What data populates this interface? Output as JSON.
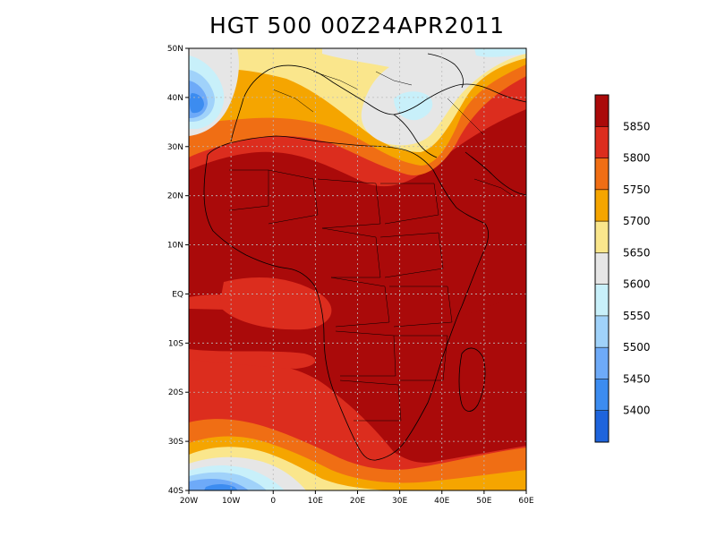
{
  "title": "HGT 500 00Z24APR2011",
  "map": {
    "lon_range": [
      -20,
      60
    ],
    "lat_range": [
      -40,
      50
    ],
    "lon_ticks": [
      "20W",
      "10W",
      "0",
      "10E",
      "20E",
      "30E",
      "40E",
      "50E",
      "60E"
    ],
    "lat_ticks": [
      "50N",
      "40N",
      "30N",
      "20N",
      "10N",
      "EQ",
      "10S",
      "20S",
      "30S",
      "40S"
    ],
    "grid": true
  },
  "colorbar": {
    "levels": [
      "5400",
      "5450",
      "5500",
      "5550",
      "5600",
      "5650",
      "5700",
      "5750",
      "5800",
      "5850"
    ],
    "colors": [
      "#1e64dc",
      "#3c8cf0",
      "#6eaaf8",
      "#a0d2fa",
      "#c8f0fa",
      "#e6e6e6",
      "#fae68c",
      "#f5a500",
      "#f06e14",
      "#dc2d1e",
      "#aa0a0a"
    ]
  }
}
